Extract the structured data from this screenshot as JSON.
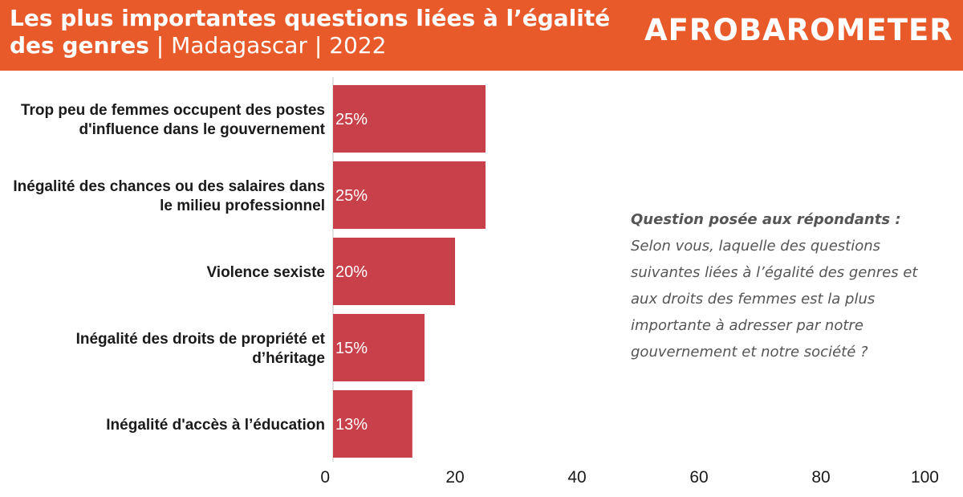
{
  "header": {
    "title_bold_1": "Les plus importantes questions liées à l’égalité",
    "title_bold_2": "des genres",
    "title_rest": " | Madagascar  | 2022",
    "logo": "AFROBAROMETER",
    "bg_color": "#e95a2b"
  },
  "note": {
    "heading": "Question posée aux répondants :",
    "body": "Selon vous, laquelle des questions suivantes liées à l’égalité des genres et aux droits des femmes est la plus importante à adresser par notre gouvernement et notre société ?"
  },
  "chart_data": {
    "type": "bar",
    "orientation": "horizontal",
    "categories": [
      [
        "Trop peu de femmes occupent des postes",
        "d'influence dans le gouvernement"
      ],
      [
        "Inégalité des chances ou des salaires dans",
        "le milieu professionnel"
      ],
      [
        "Violence sexiste"
      ],
      [
        "Inégalité des droits de propriété et",
        "d’héritage"
      ],
      [
        "Inégalité d'accès à l’éducation"
      ]
    ],
    "values": [
      25,
      25,
      20,
      15,
      13
    ],
    "value_labels": [
      "25%",
      "25%",
      "20%",
      "15%",
      "13%"
    ],
    "xlim": [
      0,
      100
    ],
    "xticks": [
      "0",
      "20",
      "40",
      "60",
      "80",
      "100"
    ],
    "bar_color": "#c8404a",
    "grid": false
  }
}
